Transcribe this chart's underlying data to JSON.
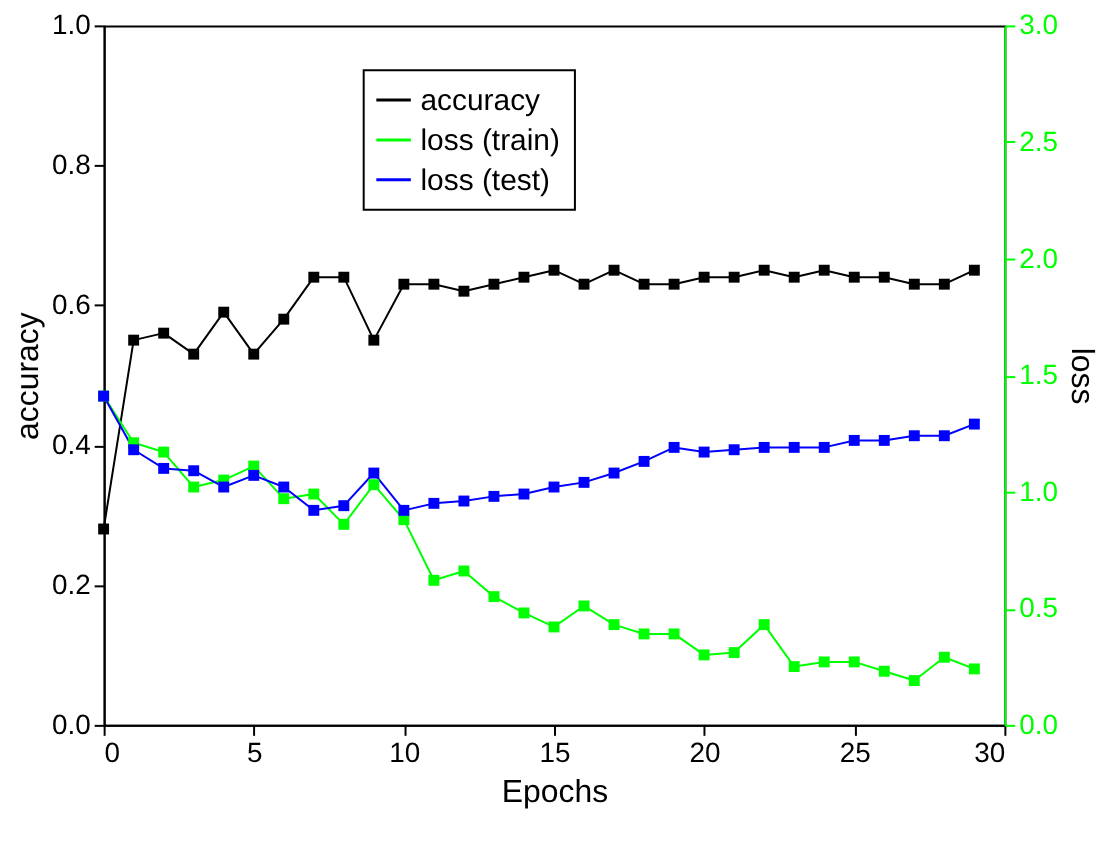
{
  "chart_data": {
    "type": "line",
    "xlabel": "Epochs",
    "ylabel": "accuracy",
    "y2label": "loss",
    "x": [
      0,
      1,
      2,
      3,
      4,
      5,
      6,
      7,
      8,
      9,
      10,
      11,
      12,
      13,
      14,
      15,
      16,
      17,
      18,
      19,
      20,
      21,
      22,
      23,
      24,
      25,
      26,
      27,
      28,
      29
    ],
    "xlim": [
      0,
      30
    ],
    "xticks": [
      0,
      5,
      10,
      15,
      20,
      25,
      30
    ],
    "ylim": [
      0,
      1.0
    ],
    "yticks": [
      {
        "value": 0,
        "label": "0.0"
      },
      0.2,
      0.4,
      0.6,
      0.8,
      {
        "value": 1,
        "label": "1.0"
      }
    ],
    "y2lim": [
      0,
      3.0
    ],
    "y2ticks": [
      {
        "value": 0,
        "label": "0.0"
      },
      0.5,
      {
        "value": 1,
        "label": "1.0"
      },
      1.5,
      {
        "value": 2,
        "label": "2.0"
      },
      2.5,
      {
        "value": 3,
        "label": "3.0"
      }
    ],
    "marker": "square",
    "legend": "top",
    "grid": false,
    "series": [
      {
        "name": "accuracy",
        "color": "#000000",
        "values": [
          0.28,
          0.55,
          0.56,
          0.53,
          0.59,
          0.53,
          0.58,
          0.64,
          0.64,
          0.55,
          0.63,
          0.63,
          0.62,
          0.63,
          0.64,
          0.65,
          0.63,
          0.65,
          0.63,
          0.63,
          0.64,
          0.64,
          0.65,
          0.64,
          0.65,
          0.64,
          0.64,
          0.63,
          0.63,
          0.65
        ]
      },
      {
        "name": "loss (train)",
        "color": "#00ff00",
        "axis": "y2",
        "values": [
          1.41,
          1.21,
          1.17,
          1.02,
          1.05,
          1.11,
          0.97,
          0.99,
          0.86,
          1.03,
          0.88,
          0.62,
          0.66,
          0.55,
          0.48,
          0.42,
          0.51,
          0.43,
          0.39,
          0.39,
          0.3,
          0.31,
          0.43,
          0.25,
          0.27,
          0.27,
          0.23,
          0.19,
          0.29,
          0.24
        ]
      },
      {
        "name": "loss (test)",
        "color": "#0000ff",
        "axis": "y2",
        "values": [
          1.41,
          1.18,
          1.1,
          1.09,
          1.02,
          1.07,
          1.02,
          0.92,
          0.94,
          1.08,
          0.92,
          0.95,
          0.96,
          0.98,
          0.99,
          1.02,
          1.04,
          1.08,
          1.13,
          1.19,
          1.17,
          1.18,
          1.19,
          1.19,
          1.19,
          1.22,
          1.22,
          1.24,
          1.24,
          1.29
        ]
      }
    ]
  }
}
